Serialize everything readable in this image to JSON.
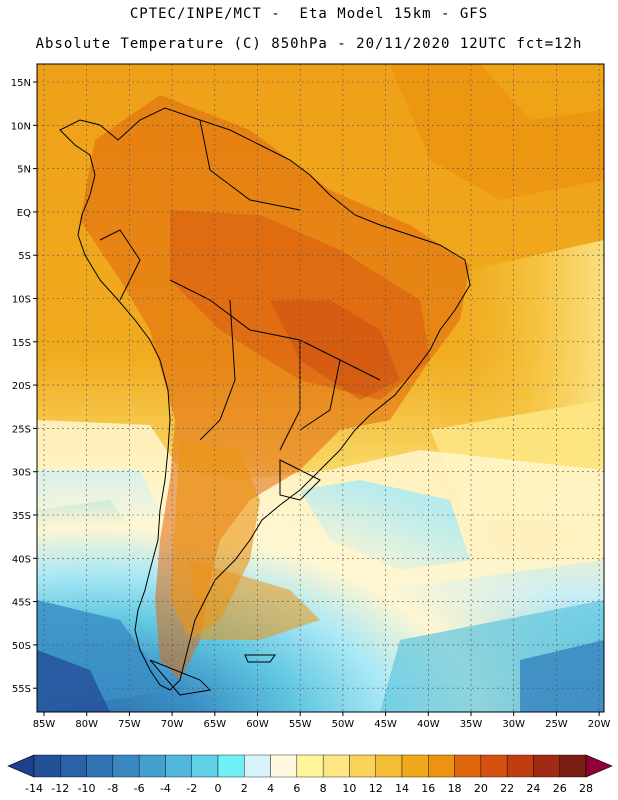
{
  "header": {
    "line1": "CPTEC/INPE/MCT -  Eta Model 15km - GFS",
    "line2": "Absolute Temperature (C) 850hPa - 20/11/2020 12UTC fct=12h"
  },
  "map": {
    "lat_ticks": [
      "15N",
      "10N",
      "5N",
      "EQ",
      "5S",
      "10S",
      "15S",
      "20S",
      "25S",
      "30S",
      "35S",
      "40S",
      "45S",
      "50S",
      "55S"
    ],
    "lon_ticks": [
      "85W",
      "80W",
      "75W",
      "70W",
      "65W",
      "60W",
      "55W",
      "50W",
      "45W",
      "40W",
      "35W",
      "30W",
      "25W",
      "20W"
    ]
  },
  "colorbar": {
    "labels": [
      "-14",
      "-12",
      "-10",
      "-8",
      "-6",
      "-4",
      "-2",
      "0",
      "2",
      "4",
      "6",
      "8",
      "10",
      "12",
      "14",
      "16",
      "18",
      "20",
      "22",
      "24",
      "26",
      "28"
    ],
    "colors": [
      "#1f3f8c",
      "#24509a",
      "#2a62a8",
      "#3074b4",
      "#3a87c2",
      "#44a0d0",
      "#4fb8dc",
      "#5fd0e8",
      "#6ff0f6",
      "#d6f3fc",
      "#fff9e0",
      "#fff59a",
      "#fde683",
      "#f9d25a",
      "#f3bd35",
      "#f0a91b",
      "#ec9412",
      "#e0680c",
      "#d6500f",
      "#c13c11",
      "#a02b12",
      "#7a1d12",
      "#92003a"
    ]
  }
}
